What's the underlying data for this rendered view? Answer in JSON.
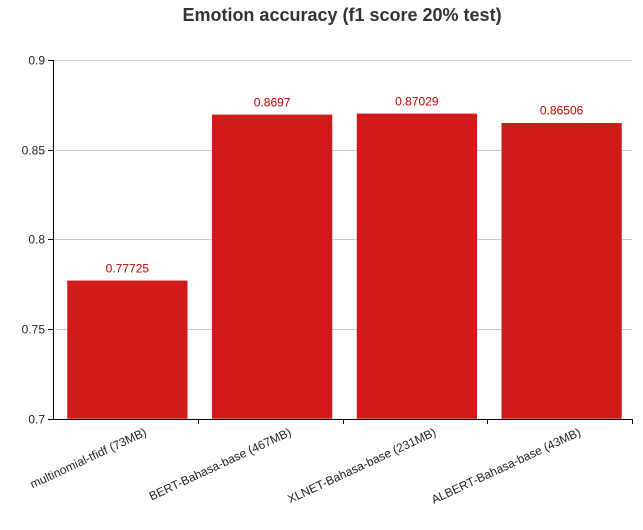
{
  "colors": {
    "bar": "#d11a1a",
    "value_label": "#c00000"
  },
  "chart_data": {
    "type": "bar",
    "title": "Emotion accuracy (f1 score 20% test)",
    "xlabel": "",
    "ylabel": "",
    "categories": [
      "multinomial-tfidf (73MB)",
      "BERT-Bahasa-base (467MB)",
      "XLNET-Bahasa-base (231MB)",
      "ALBERT-Bahasa-base (43MB)"
    ],
    "values": [
      0.77725,
      0.8697,
      0.87029,
      0.86506
    ],
    "value_labels": [
      "0.77725",
      "0.8697",
      "0.87029",
      "0.86506"
    ],
    "ylim": [
      0.7,
      0.9
    ],
    "y_ticks": [
      0.7,
      0.75,
      0.8,
      0.85,
      0.9
    ],
    "y_tick_labels": [
      "0.7",
      "0.75",
      "0.8",
      "0.85",
      "0.9"
    ],
    "grid": true,
    "legend": "none"
  }
}
